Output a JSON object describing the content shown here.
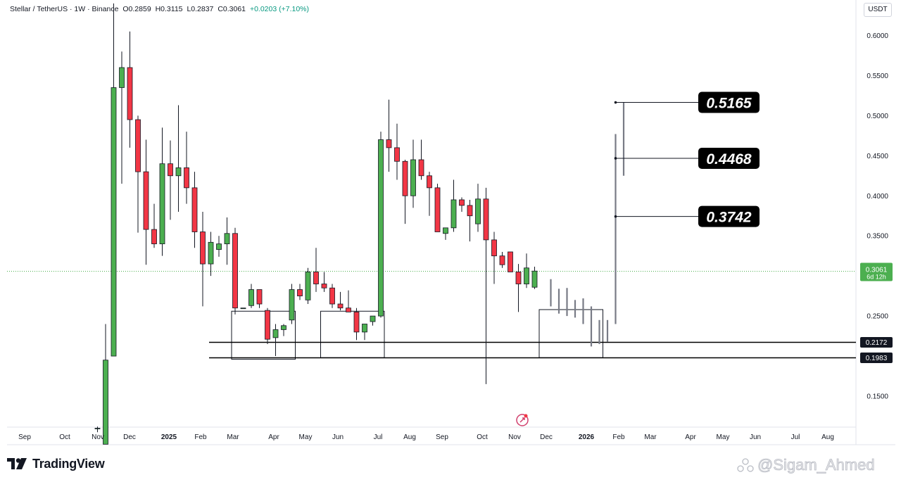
{
  "header": {
    "symbol": "Stellar / TetherUS · 1W · Binance",
    "open": "O0.2859",
    "high": "H0.3115",
    "low": "L0.2837",
    "close": "C0.3061",
    "change": "+0.0203 (+7.10%)"
  },
  "unit_label": "USDT",
  "price_tag": {
    "value": "0.3061",
    "countdown": "6d 12h",
    "color": "#4caf50"
  },
  "brand": "TradingView",
  "watermark": "@Sigam_Ahmed",
  "chart_data": {
    "type": "candlestick",
    "y_axis": {
      "ticks": [
        "0.1500",
        "0.2500",
        "0.3000",
        "0.3500",
        "0.4000",
        "0.4500",
        "0.5000",
        "0.5500",
        "0.6000"
      ],
      "range": [
        0.106,
        0.643
      ]
    },
    "x_axis": {
      "labels": [
        "Sep",
        "Oct",
        "Nov",
        "Dec",
        "2025",
        "Feb",
        "Mar",
        "Apr",
        "May",
        "Jun",
        "Jul",
        "Aug",
        "Sep",
        "Oct",
        "Nov",
        "Dec",
        "2026",
        "Feb",
        "Mar",
        "Apr",
        "May",
        "Jun",
        "Jul",
        "Aug"
      ],
      "bold": [
        "2025",
        "2026"
      ]
    },
    "colors": {
      "up": "#4caf50",
      "down": "#f23645",
      "line": "#000000",
      "current": "#4caf50",
      "gray": "#787b86"
    },
    "candles": [
      {
        "o": 0.11,
        "h": 0.112,
        "l": 0.105,
        "c": 0.11
      },
      {
        "o": 0.09,
        "h": 0.24,
        "l": 0.09,
        "c": 0.195
      },
      {
        "o": 0.2,
        "h": 0.64,
        "l": 0.2,
        "c": 0.535
      },
      {
        "o": 0.535,
        "h": 0.58,
        "l": 0.415,
        "c": 0.56
      },
      {
        "o": 0.56,
        "h": 0.605,
        "l": 0.46,
        "c": 0.495
      },
      {
        "o": 0.495,
        "h": 0.5,
        "l": 0.354,
        "c": 0.43
      },
      {
        "o": 0.43,
        "h": 0.47,
        "l": 0.314,
        "c": 0.358
      },
      {
        "o": 0.358,
        "h": 0.39,
        "l": 0.335,
        "c": 0.34
      },
      {
        "o": 0.34,
        "h": 0.485,
        "l": 0.325,
        "c": 0.44
      },
      {
        "o": 0.44,
        "h": 0.469,
        "l": 0.37,
        "c": 0.425
      },
      {
        "o": 0.425,
        "h": 0.513,
        "l": 0.38,
        "c": 0.435
      },
      {
        "o": 0.435,
        "h": 0.48,
        "l": 0.39,
        "c": 0.41
      },
      {
        "o": 0.41,
        "h": 0.43,
        "l": 0.335,
        "c": 0.355
      },
      {
        "o": 0.355,
        "h": 0.38,
        "l": 0.262,
        "c": 0.315
      },
      {
        "o": 0.315,
        "h": 0.355,
        "l": 0.3,
        "c": 0.342
      },
      {
        "o": 0.333,
        "h": 0.35,
        "l": 0.324,
        "c": 0.34
      },
      {
        "o": 0.34,
        "h": 0.373,
        "l": 0.314,
        "c": 0.353
      },
      {
        "o": 0.353,
        "h": 0.36,
        "l": 0.252,
        "c": 0.26
      },
      {
        "o": 0.26,
        "h": 0.26,
        "l": 0.26,
        "c": 0.26
      },
      {
        "o": 0.263,
        "h": 0.29,
        "l": 0.26,
        "c": 0.283
      },
      {
        "o": 0.283,
        "h": 0.283,
        "l": 0.26,
        "c": 0.265
      },
      {
        "o": 0.257,
        "h": 0.26,
        "l": 0.215,
        "c": 0.221
      },
      {
        "o": 0.223,
        "h": 0.24,
        "l": 0.2,
        "c": 0.233
      },
      {
        "o": 0.233,
        "h": 0.24,
        "l": 0.225,
        "c": 0.238
      },
      {
        "o": 0.245,
        "h": 0.29,
        "l": 0.24,
        "c": 0.283
      },
      {
        "o": 0.283,
        "h": 0.29,
        "l": 0.27,
        "c": 0.275
      },
      {
        "o": 0.27,
        "h": 0.31,
        "l": 0.265,
        "c": 0.305
      },
      {
        "o": 0.305,
        "h": 0.335,
        "l": 0.28,
        "c": 0.29
      },
      {
        "o": 0.29,
        "h": 0.305,
        "l": 0.28,
        "c": 0.285
      },
      {
        "o": 0.285,
        "h": 0.29,
        "l": 0.26,
        "c": 0.265
      },
      {
        "o": 0.265,
        "h": 0.28,
        "l": 0.257,
        "c": 0.26
      },
      {
        "o": 0.26,
        "h": 0.282,
        "l": 0.257,
        "c": 0.255
      },
      {
        "o": 0.255,
        "h": 0.26,
        "l": 0.22,
        "c": 0.23
      },
      {
        "o": 0.23,
        "h": 0.24,
        "l": 0.22,
        "c": 0.24
      },
      {
        "o": 0.243,
        "h": 0.25,
        "l": 0.238,
        "c": 0.25
      },
      {
        "o": 0.25,
        "h": 0.48,
        "l": 0.248,
        "c": 0.47
      },
      {
        "o": 0.47,
        "h": 0.52,
        "l": 0.43,
        "c": 0.46
      },
      {
        "o": 0.46,
        "h": 0.49,
        "l": 0.42,
        "c": 0.443
      },
      {
        "o": 0.443,
        "h": 0.445,
        "l": 0.365,
        "c": 0.4
      },
      {
        "o": 0.4,
        "h": 0.47,
        "l": 0.385,
        "c": 0.445
      },
      {
        "o": 0.445,
        "h": 0.47,
        "l": 0.42,
        "c": 0.425
      },
      {
        "o": 0.425,
        "h": 0.43,
        "l": 0.375,
        "c": 0.41
      },
      {
        "o": 0.41,
        "h": 0.415,
        "l": 0.355,
        "c": 0.355
      },
      {
        "o": 0.353,
        "h": 0.36,
        "l": 0.345,
        "c": 0.36
      },
      {
        "o": 0.36,
        "h": 0.42,
        "l": 0.355,
        "c": 0.395
      },
      {
        "o": 0.395,
        "h": 0.398,
        "l": 0.38,
        "c": 0.388
      },
      {
        "o": 0.388,
        "h": 0.395,
        "l": 0.343,
        "c": 0.375
      },
      {
        "o": 0.365,
        "h": 0.415,
        "l": 0.355,
        "c": 0.396
      },
      {
        "o": 0.396,
        "h": 0.41,
        "l": 0.165,
        "c": 0.345
      },
      {
        "o": 0.345,
        "h": 0.355,
        "l": 0.29,
        "c": 0.325
      },
      {
        "o": 0.325,
        "h": 0.33,
        "l": 0.31,
        "c": 0.314
      },
      {
        "o": 0.33,
        "h": 0.33,
        "l": 0.305,
        "c": 0.305
      },
      {
        "o": 0.305,
        "h": 0.315,
        "l": 0.255,
        "c": 0.29
      },
      {
        "o": 0.29,
        "h": 0.328,
        "l": 0.285,
        "c": 0.31
      },
      {
        "o": 0.2859,
        "h": 0.3115,
        "l": 0.2837,
        "c": 0.3061
      }
    ],
    "projected_wicks": [
      {
        "h": 0.296,
        "l": 0.262
      },
      {
        "h": 0.284,
        "l": 0.253
      },
      {
        "h": 0.285,
        "l": 0.25
      },
      {
        "h": 0.27,
        "l": 0.248
      },
      {
        "h": 0.272,
        "l": 0.24
      },
      {
        "h": 0.262,
        "l": 0.212
      },
      {
        "h": 0.245,
        "l": 0.215
      },
      {
        "h": 0.245,
        "l": 0.218
      },
      {
        "h": 0.477,
        "l": 0.24
      },
      {
        "h": 0.5165,
        "l": 0.425
      }
    ],
    "support_lines": [
      {
        "value": 0.2172,
        "label": "0.2172"
      },
      {
        "value": 0.1983,
        "label": "0.1983"
      }
    ],
    "current_price": 0.3061,
    "targets": [
      {
        "value": 0.5165,
        "label": "0.5165"
      },
      {
        "value": 0.4468,
        "label": "0.4468"
      },
      {
        "value": 0.3742,
        "label": "0.3742"
      }
    ],
    "consolidation_boxes": [
      {
        "from": 17,
        "to": 24,
        "top": 0.256,
        "bottom": 0.196
      },
      {
        "from": 28,
        "to": 35,
        "top": 0.256,
        "bottom": 0.198
      },
      {
        "from": 55,
        "to": 62,
        "top": 0.258,
        "bottom": 0.198
      }
    ],
    "grid": false
  }
}
